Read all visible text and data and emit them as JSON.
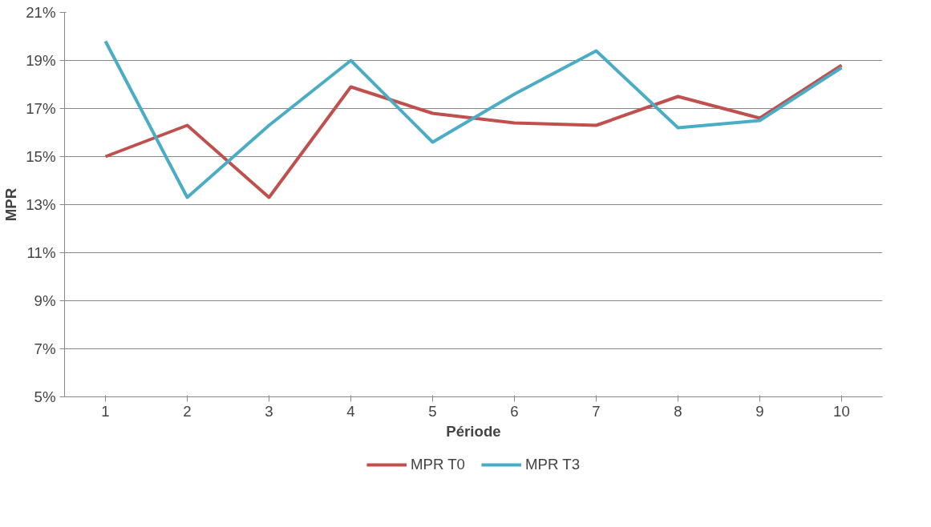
{
  "chart_data": {
    "type": "line",
    "xlabel": "Période",
    "ylabel": "MPR",
    "categories": [
      "1",
      "2",
      "3",
      "4",
      "5",
      "6",
      "7",
      "8",
      "9",
      "10"
    ],
    "series": [
      {
        "name": "MPR T0",
        "color": "#c0504d",
        "values": [
          15.0,
          16.3,
          13.3,
          17.9,
          16.8,
          16.4,
          16.3,
          17.5,
          16.6,
          18.8
        ]
      },
      {
        "name": "MPR T3",
        "color": "#4bacc6",
        "values": [
          19.8,
          13.3,
          16.3,
          19.0,
          15.6,
          17.6,
          19.4,
          16.2,
          16.5,
          18.7
        ]
      }
    ],
    "ylim": [
      5,
      21
    ],
    "yticks": [
      {
        "value": 5,
        "label": "5%"
      },
      {
        "value": 7,
        "label": "7%"
      },
      {
        "value": 9,
        "label": "9%"
      },
      {
        "value": 11,
        "label": "11%"
      },
      {
        "value": 13,
        "label": "13%"
      },
      {
        "value": 15,
        "label": "15%"
      },
      {
        "value": 17,
        "label": "17%"
      },
      {
        "value": 19,
        "label": "19%"
      },
      {
        "value": 21,
        "label": "21%"
      }
    ],
    "grid": "y",
    "legend": "bottom",
    "marker": "none",
    "line_style": "solid"
  }
}
